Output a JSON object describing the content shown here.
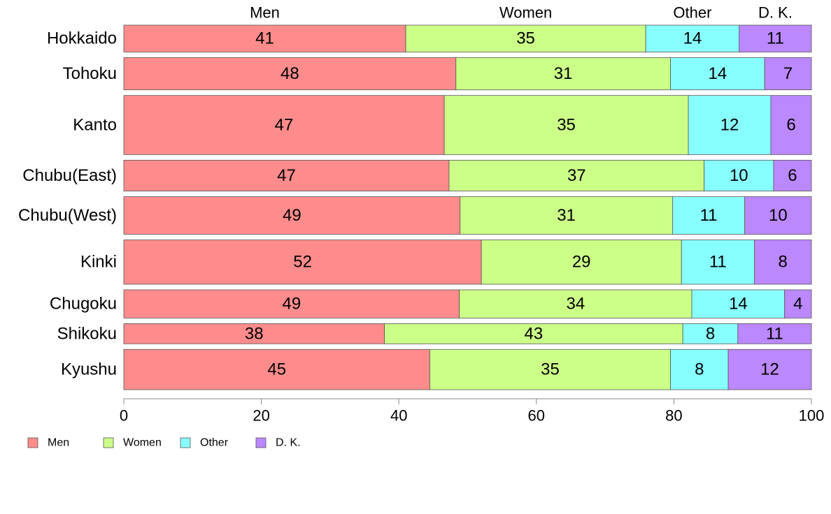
{
  "chart_data": {
    "type": "bar",
    "orientation": "horizontal",
    "stacked": "percent",
    "bar_widths": "proportional",
    "categories": [
      "Hokkaido",
      "Tohoku",
      "Kanto",
      "Chubu(East)",
      "Chubu(West)",
      "Kinki",
      "Chugoku",
      "Shikoku",
      "Kyushu"
    ],
    "series": [
      {
        "name": "Men",
        "color": "#FF8C8C",
        "values": [
          41,
          48,
          47,
          47,
          49,
          52,
          49,
          38,
          45
        ]
      },
      {
        "name": "Women",
        "color": "#CCFF88",
        "values": [
          35,
          31,
          35,
          37,
          31,
          29,
          34,
          43,
          35
        ]
      },
      {
        "name": "Other",
        "color": "#88FFFF",
        "values": [
          14,
          14,
          12,
          10,
          11,
          11,
          14,
          8,
          8
        ]
      },
      {
        "name": "D. K.",
        "color": "#BB88FF",
        "values": [
          11,
          7,
          6,
          6,
          10,
          8,
          4,
          11,
          12
        ]
      }
    ],
    "boundaries": [
      [
        41.0,
        75.9,
        89.5,
        100
      ],
      [
        48.3,
        79.5,
        93.2,
        100
      ],
      [
        46.6,
        82.1,
        94.1,
        100
      ],
      [
        47.3,
        84.4,
        94.5,
        100
      ],
      [
        48.9,
        79.8,
        90.3,
        100
      ],
      [
        52.0,
        81.1,
        91.7,
        100
      ],
      [
        48.8,
        82.6,
        96.1,
        100
      ],
      [
        37.9,
        81.3,
        89.3,
        100
      ],
      [
        44.5,
        79.5,
        87.9,
        100
      ]
    ],
    "relative_bar_size": [
      1.0,
      1.2,
      2.2,
      1.15,
      1.4,
      1.65,
      1.05,
      0.75,
      1.5
    ],
    "top_labels": [
      "Men",
      "Women",
      "Other",
      "D. K."
    ],
    "xlim": [
      0,
      100
    ],
    "xticks": [
      0,
      20,
      40,
      60,
      80,
      100
    ],
    "xlabel": "",
    "ylabel": "",
    "title": "",
    "grid": false,
    "legend": {
      "placement": "bottom-left",
      "entries": [
        "Men",
        "Women",
        "Other",
        "D. K."
      ]
    }
  }
}
